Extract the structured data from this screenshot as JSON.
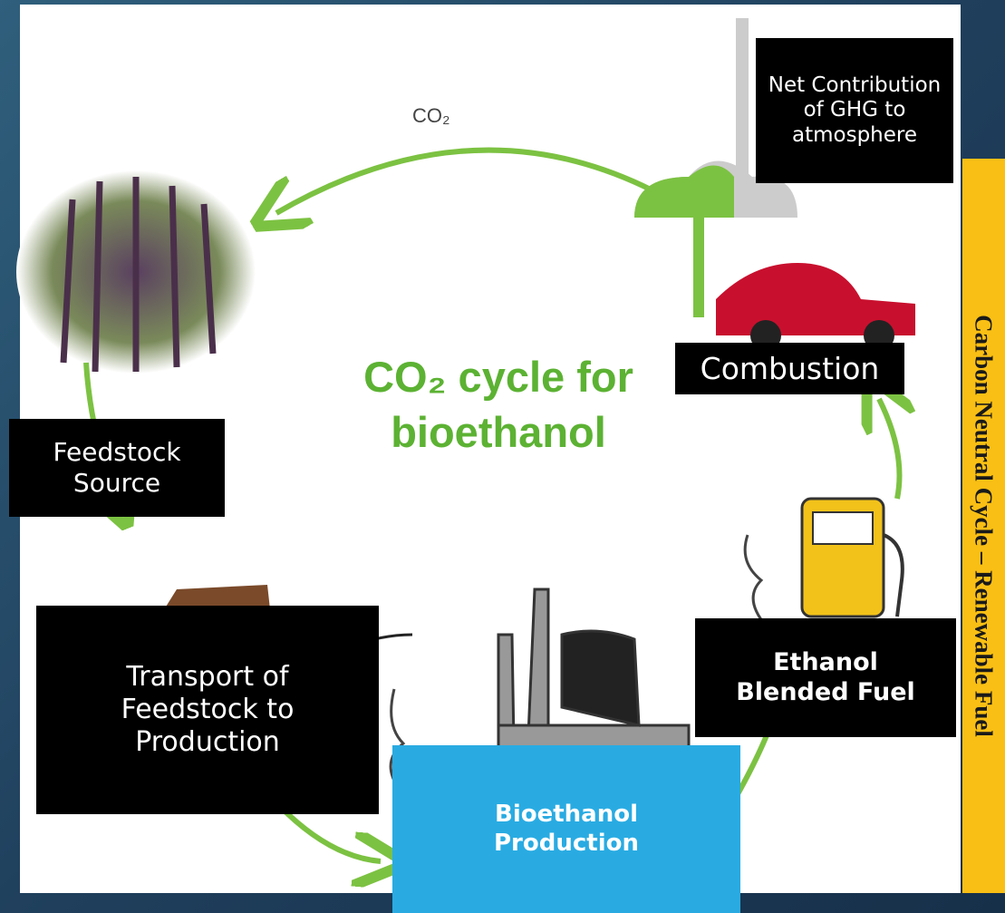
{
  "diagram": {
    "side_title": "Carbon Neutral Cycle – Renewable Fuel",
    "title": "CO₂ cycle for bioethanol",
    "arrow_label": "CO₂",
    "nodes": [
      {
        "label": "Net Contribution of GHG to atmosphere"
      },
      {
        "label": "Combustion"
      },
      {
        "label": "Feedstock Source"
      },
      {
        "label": "Transport of Feedstock to Production"
      },
      {
        "label": "Bioethanol Production"
      },
      {
        "label": "Ethanol Blended Fuel"
      }
    ]
  }
}
